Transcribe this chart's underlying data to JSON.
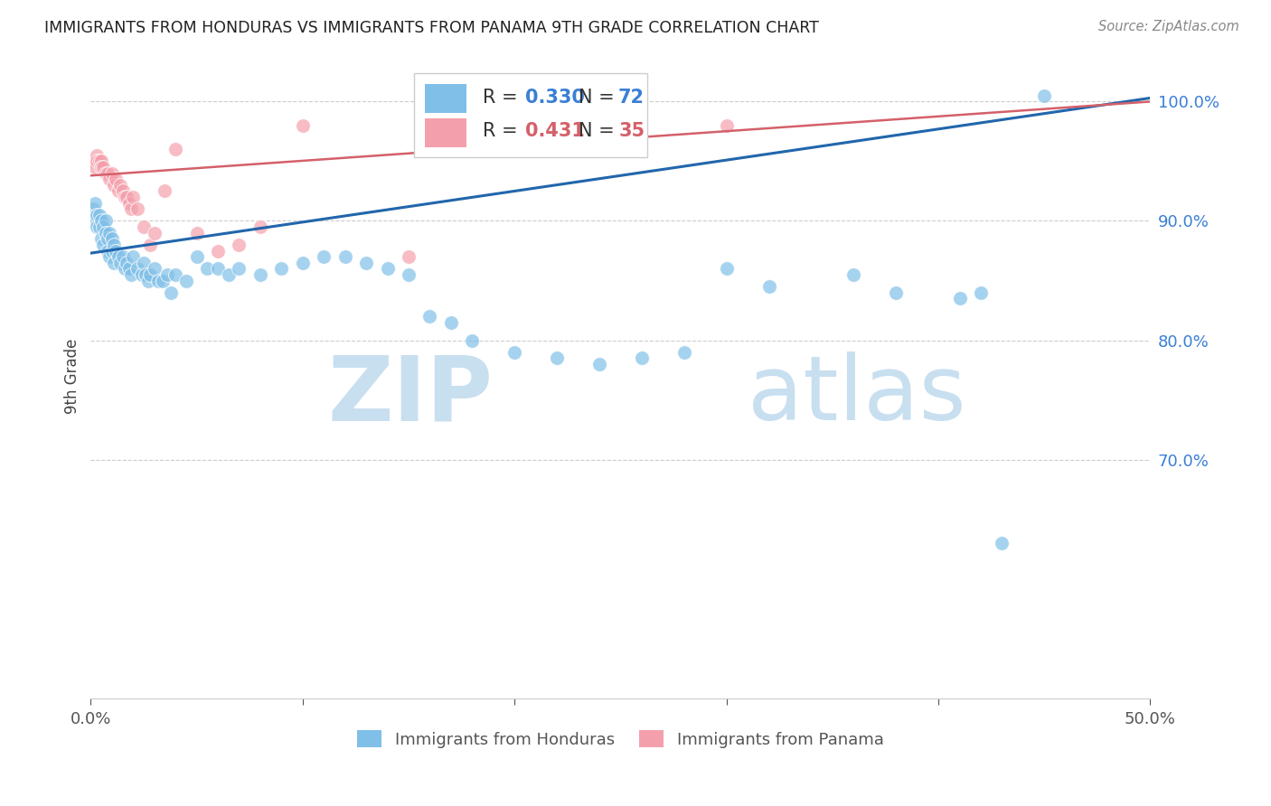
{
  "title": "IMMIGRANTS FROM HONDURAS VS IMMIGRANTS FROM PANAMA 9TH GRADE CORRELATION CHART",
  "source_text": "Source: ZipAtlas.com",
  "ylabel": "9th Grade",
  "xlim": [
    0.0,
    0.5
  ],
  "ylim": [
    0.5,
    1.04
  ],
  "yticks_right": [
    0.7,
    0.8,
    0.9,
    1.0
  ],
  "ytick_labels_right": [
    "70.0%",
    "80.0%",
    "90.0%",
    "100.0%"
  ],
  "blue_color": "#7fbfe8",
  "pink_color": "#f4a0ac",
  "blue_line_color": "#2166ac",
  "pink_line_color": "#d4606a",
  "R_blue": 0.33,
  "N_blue": 72,
  "R_pink": 0.431,
  "N_pink": 35,
  "watermark_zip_color": "#c8dff0",
  "watermark_atlas_color": "#c8dff0",
  "blue_scatter_x": [
    0.001,
    0.002,
    0.002,
    0.003,
    0.003,
    0.004,
    0.004,
    0.005,
    0.005,
    0.006,
    0.006,
    0.007,
    0.007,
    0.008,
    0.008,
    0.009,
    0.009,
    0.01,
    0.01,
    0.011,
    0.011,
    0.012,
    0.013,
    0.014,
    0.015,
    0.016,
    0.017,
    0.018,
    0.019,
    0.02,
    0.022,
    0.024,
    0.025,
    0.026,
    0.027,
    0.028,
    0.03,
    0.032,
    0.034,
    0.036,
    0.038,
    0.04,
    0.045,
    0.05,
    0.055,
    0.06,
    0.065,
    0.07,
    0.08,
    0.09,
    0.1,
    0.11,
    0.12,
    0.13,
    0.14,
    0.15,
    0.16,
    0.17,
    0.18,
    0.2,
    0.22,
    0.24,
    0.26,
    0.28,
    0.3,
    0.32,
    0.36,
    0.38,
    0.41,
    0.42,
    0.43,
    0.45
  ],
  "blue_scatter_y": [
    0.91,
    0.9,
    0.915,
    0.905,
    0.895,
    0.905,
    0.895,
    0.9,
    0.885,
    0.895,
    0.88,
    0.9,
    0.89,
    0.885,
    0.875,
    0.89,
    0.87,
    0.885,
    0.875,
    0.88,
    0.865,
    0.875,
    0.87,
    0.865,
    0.87,
    0.86,
    0.865,
    0.86,
    0.855,
    0.87,
    0.86,
    0.855,
    0.865,
    0.855,
    0.85,
    0.855,
    0.86,
    0.85,
    0.85,
    0.855,
    0.84,
    0.855,
    0.85,
    0.87,
    0.86,
    0.86,
    0.855,
    0.86,
    0.855,
    0.86,
    0.865,
    0.87,
    0.87,
    0.865,
    0.86,
    0.855,
    0.82,
    0.815,
    0.8,
    0.79,
    0.785,
    0.78,
    0.785,
    0.79,
    0.86,
    0.845,
    0.855,
    0.84,
    0.835,
    0.84,
    0.63,
    1.005
  ],
  "pink_scatter_x": [
    0.001,
    0.002,
    0.003,
    0.003,
    0.004,
    0.005,
    0.005,
    0.006,
    0.007,
    0.008,
    0.009,
    0.01,
    0.011,
    0.012,
    0.013,
    0.014,
    0.015,
    0.016,
    0.017,
    0.018,
    0.019,
    0.02,
    0.022,
    0.025,
    0.028,
    0.03,
    0.035,
    0.04,
    0.05,
    0.06,
    0.07,
    0.08,
    0.1,
    0.15,
    0.3
  ],
  "pink_scatter_y": [
    0.95,
    0.945,
    0.955,
    0.95,
    0.95,
    0.95,
    0.945,
    0.945,
    0.94,
    0.94,
    0.935,
    0.94,
    0.93,
    0.935,
    0.925,
    0.93,
    0.925,
    0.92,
    0.92,
    0.915,
    0.91,
    0.92,
    0.91,
    0.895,
    0.88,
    0.89,
    0.925,
    0.96,
    0.89,
    0.875,
    0.88,
    0.895,
    0.98,
    0.87,
    0.98
  ]
}
